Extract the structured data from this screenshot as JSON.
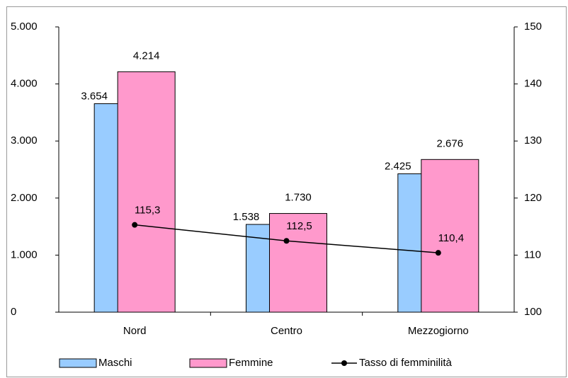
{
  "chart_data": {
    "type": "bar",
    "categories": [
      "Nord",
      "Centro",
      "Mezzogiorno"
    ],
    "series": [
      {
        "name": "Maschi",
        "color": "#99ccff",
        "values": [
          3654,
          1538,
          2425
        ],
        "value_labels": [
          "3.654",
          "1.538",
          "2.425"
        ]
      },
      {
        "name": "Femmine",
        "color": "#ff99cc",
        "values": [
          4214,
          1730,
          2676
        ],
        "value_labels": [
          "4.214",
          "1.730",
          "2.676"
        ]
      },
      {
        "name": "Tasso di femminilità",
        "type": "line",
        "axis": "y2",
        "color": "#000000",
        "values": [
          115.3,
          112.5,
          110.4
        ],
        "value_labels": [
          "115,3",
          "112,5",
          "110,4"
        ]
      }
    ],
    "ylim": [
      0,
      5000
    ],
    "yticks": [
      0,
      {
        "value": 1000,
        "label": "1.000"
      },
      {
        "value": 2000,
        "label": "2.000"
      },
      {
        "value": 3000,
        "label": "3.000"
      },
      {
        "value": 4000,
        "label": "4.000"
      },
      {
        "value": 5000,
        "label": "5.000"
      }
    ],
    "y2lim": [
      100,
      150
    ],
    "y2ticks": [
      100,
      110,
      120,
      130,
      140,
      150
    ],
    "legend": "bottom"
  }
}
